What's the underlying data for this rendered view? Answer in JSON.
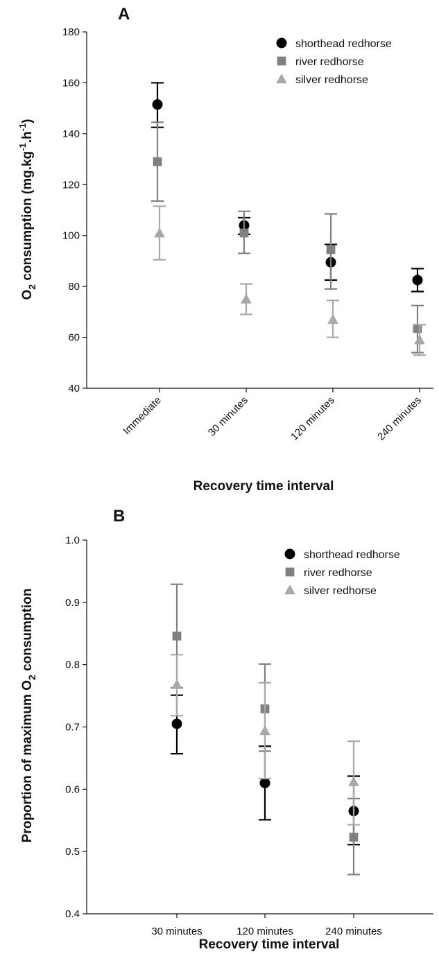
{
  "chart_data": [
    {
      "panel": "A",
      "type": "scatter",
      "xlabel": "Recovery time interval",
      "ylabel_main": "O",
      "ylabel_sub": "2",
      "ylabel_rest": " consumption (mg.kg",
      "ylabel_sup1": "-1",
      "ylabel_mid": ".h",
      "ylabel_sup2": "-1",
      "ylabel_end": ")",
      "categories": [
        "Immediate",
        "30 minutes",
        "120 minutes",
        "240 minutes"
      ],
      "ylim": [
        40,
        180
      ],
      "yticks": [
        "40",
        "60",
        "80",
        "100",
        "120",
        "140",
        "160",
        "180"
      ],
      "grid": false,
      "legend_position": "top-right",
      "series": [
        {
          "name": "shorthead redhorse",
          "marker": "circle",
          "color": "#000000",
          "values": [
            151.5,
            104,
            89.5,
            82.5
          ],
          "err_low": [
            142.5,
            100.5,
            82.5,
            78
          ],
          "err_high": [
            160,
            107,
            96.5,
            87
          ]
        },
        {
          "name": "river redhorse",
          "marker": "square",
          "color": "#808080",
          "values": [
            129,
            101,
            94.5,
            63.5
          ],
          "err_low": [
            113.5,
            93,
            79,
            54
          ],
          "err_high": [
            144.5,
            109.5,
            108.5,
            72.5
          ]
        },
        {
          "name": "silver redhorse",
          "marker": "triangle",
          "color": "#a8a8a8",
          "values": [
            101,
            75,
            67,
            59
          ],
          "err_low": [
            90.5,
            69,
            60,
            53
          ],
          "err_high": [
            111.5,
            81,
            74.5,
            65
          ]
        }
      ]
    },
    {
      "panel": "B",
      "type": "scatter",
      "xlabel": "Recovery time interval",
      "ylabel_pre": "Proportion of maximum O",
      "ylabel_sub": "2",
      "ylabel_post": " consumption",
      "categories": [
        "30 minutes",
        "120 minutes",
        "240 minutes"
      ],
      "ylim": [
        0.4,
        1.0
      ],
      "yticks": [
        "0.4",
        "0.5",
        "0.6",
        "0.7",
        "0.8",
        "0.9",
        "1.0"
      ],
      "grid": false,
      "legend_position": "top-right",
      "series": [
        {
          "name": "shorthead redhorse",
          "marker": "circle",
          "color": "#000000",
          "values": [
            0.705,
            0.61,
            0.565
          ],
          "err_low": [
            0.657,
            0.551,
            0.511
          ],
          "err_high": [
            0.751,
            0.669,
            0.621
          ]
        },
        {
          "name": "river redhorse",
          "marker": "square",
          "color": "#808080",
          "values": [
            0.846,
            0.729,
            0.523
          ],
          "err_low": [
            0.763,
            0.661,
            0.463
          ],
          "err_high": [
            0.929,
            0.801,
            0.585
          ]
        },
        {
          "name": "silver redhorse",
          "marker": "triangle",
          "color": "#a8a8a8",
          "values": [
            0.768,
            0.694,
            0.612
          ],
          "err_low": [
            0.718,
            0.617,
            0.543
          ],
          "err_high": [
            0.816,
            0.771,
            0.677
          ]
        }
      ]
    }
  ]
}
